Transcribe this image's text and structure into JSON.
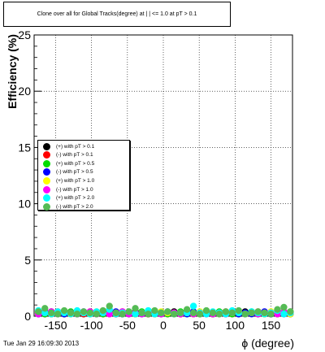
{
  "title": "Clone  over all for Global Tracks(degree) at |  | <= 1.0 at pT > 0.1",
  "footer": "Tue Jan 29 16:09:30 2013",
  "chart_data": {
    "type": "scatter",
    "title": "Clone  over all for Global Tracks(degree) at |  | <= 1.0 at pT > 0.1",
    "xlabel": "ϕ (degree)",
    "ylabel": "Efficiency (%)",
    "xlim": [
      -180,
      180
    ],
    "ylim": [
      0,
      25
    ],
    "xticks": [
      -150,
      -100,
      -50,
      0,
      50,
      100,
      150
    ],
    "xtick_labels": [
      "-150",
      "-100",
      "-50",
      "0",
      "50",
      "100",
      "150"
    ],
    "yticks": [
      0,
      5,
      10,
      15,
      20,
      25
    ],
    "ytick_labels": [
      "0",
      "5",
      "10",
      "15",
      "20",
      "25"
    ],
    "grid": true,
    "legend_position": "center-left",
    "x": [
      -174,
      -165,
      -156,
      -147,
      -138,
      -129,
      -120,
      -111,
      -102,
      -93,
      -84,
      -75,
      -66,
      -57,
      -48,
      -39,
      -30,
      -21,
      -12,
      -3,
      6,
      15,
      24,
      33,
      42,
      51,
      60,
      69,
      78,
      87,
      96,
      105,
      114,
      123,
      132,
      141,
      150,
      159,
      168,
      177
    ],
    "series": [
      {
        "name": "(+) with pT > 0.1",
        "color": "#000000",
        "values": [
          0.3,
          0.2,
          0.4,
          0.3,
          0.2,
          0.3,
          0.4,
          0.2,
          0.3,
          0.2,
          0.4,
          0.3,
          0.2,
          0.3,
          0.2,
          0.4,
          0.3,
          0.2,
          0.3,
          0.2,
          0.3,
          0.4,
          0.2,
          0.3,
          0.2,
          0.3,
          0.4,
          0.2,
          0.3,
          0.2,
          0.3,
          0.2,
          0.4,
          0.3,
          0.2,
          0.3,
          0.2,
          0.4,
          0.3,
          0.2
        ]
      },
      {
        "name": "(-) with pT > 0.1",
        "color": "#ff0000",
        "values": [
          0.2,
          0.3,
          0.2,
          0.4,
          0.3,
          0.2,
          0.3,
          0.2,
          0.4,
          0.3,
          0.2,
          0.3,
          0.2,
          0.4,
          0.3,
          0.2,
          0.3,
          0.2,
          0.4,
          0.3,
          0.2,
          0.3,
          0.2,
          0.4,
          0.3,
          0.2,
          0.3,
          0.2,
          0.3,
          0.4,
          0.2,
          0.3,
          0.2,
          0.3,
          0.4,
          0.2,
          0.3,
          0.2,
          0.4,
          0.3
        ]
      },
      {
        "name": "(+) with pT > 0.5",
        "color": "#00dd00",
        "values": [
          0.4,
          0.2,
          0.3,
          0.2,
          0.3,
          0.4,
          0.2,
          0.3,
          0.2,
          0.3,
          0.2,
          0.4,
          0.3,
          0.2,
          0.3,
          0.2,
          0.4,
          0.3,
          0.2,
          0.3,
          0.2,
          0.3,
          0.4,
          0.2,
          0.3,
          0.2,
          0.3,
          0.2,
          0.4,
          0.3,
          0.2,
          0.3,
          0.2,
          0.4,
          0.3,
          0.2,
          0.3,
          0.2,
          0.3,
          0.4
        ]
      },
      {
        "name": "(-) with pT > 0.5",
        "color": "#0000ff",
        "values": [
          0.2,
          0.4,
          0.2,
          0.3,
          0.2,
          0.3,
          0.2,
          0.4,
          0.2,
          0.3,
          0.3,
          0.2,
          0.4,
          0.2,
          0.3,
          0.3,
          0.2,
          0.4,
          0.2,
          0.3,
          0.4,
          0.2,
          0.3,
          0.2,
          0.4,
          0.3,
          0.2,
          0.3,
          0.2,
          0.3,
          0.4,
          0.2,
          0.3,
          0.2,
          0.3,
          0.4,
          0.2,
          0.3,
          0.2,
          0.3
        ]
      },
      {
        "name": "(+) with pT > 1.0",
        "color": "#ffff00",
        "values": [
          0.3,
          0.3,
          0.2,
          0.3,
          0.4,
          0.2,
          0.3,
          0.3,
          0.2,
          0.4,
          0.3,
          0.2,
          0.3,
          0.3,
          0.4,
          0.2,
          0.3,
          0.3,
          0.2,
          0.4,
          0.3,
          0.2,
          0.3,
          0.3,
          0.2,
          0.4,
          0.3,
          0.3,
          0.2,
          0.3,
          0.3,
          0.4,
          0.2,
          0.3,
          0.3,
          0.2,
          0.4,
          0.3,
          0.3,
          0.2
        ]
      },
      {
        "name": "(-) with pT > 1.0",
        "color": "#ff00ff",
        "values": [
          0.2,
          0.3,
          0.4,
          0.2,
          0.3,
          0.3,
          0.2,
          0.3,
          0.4,
          0.2,
          0.3,
          0.2,
          0.3,
          0.4,
          0.2,
          0.3,
          0.2,
          0.3,
          0.3,
          0.2,
          0.4,
          0.3,
          0.2,
          0.3,
          0.2,
          0.3,
          0.4,
          0.2,
          0.3,
          0.2,
          0.4,
          0.3,
          0.2,
          0.3,
          0.2,
          0.3,
          0.3,
          0.2,
          0.4,
          0.3
        ]
      },
      {
        "name": "(+) with pT > 2.0",
        "color": "#00ffff",
        "values": [
          0.5,
          0.3,
          0.2,
          0.4,
          0.3,
          0.2,
          0.5,
          0.3,
          0.2,
          0.4,
          0.3,
          0.6,
          0.2,
          0.3,
          0.4,
          0.2,
          0.3,
          0.5,
          0.2,
          0.3,
          0.4,
          0.2,
          0.3,
          0.3,
          0.9,
          0.3,
          0.2,
          0.4,
          0.3,
          0.2,
          0.5,
          0.3,
          0.2,
          0.4,
          0.3,
          0.2,
          0.3,
          0.5,
          0.2,
          0.3
        ]
      },
      {
        "name": "(-) with pT > 2.0",
        "color": "#55bb55",
        "values": [
          0.4,
          0.7,
          0.3,
          0.2,
          0.5,
          0.3,
          0.2,
          0.4,
          0.3,
          0.2,
          0.5,
          0.9,
          0.3,
          0.2,
          0.4,
          0.7,
          0.3,
          0.2,
          0.5,
          0.3,
          0.4,
          0.2,
          0.3,
          0.6,
          0.3,
          0.2,
          0.5,
          0.3,
          0.2,
          0.4,
          0.3,
          0.5,
          0.2,
          0.3,
          0.4,
          0.3,
          0.2,
          0.6,
          0.8,
          0.4
        ]
      }
    ]
  }
}
